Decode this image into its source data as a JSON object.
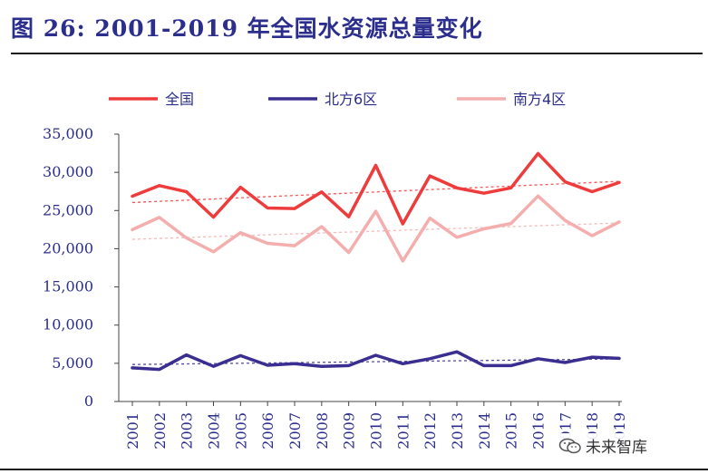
{
  "header": {
    "title": "图 26: 2001-2019 年全国水资源总量变化"
  },
  "watermark": {
    "text": "未来智库",
    "icon": "wechat-icon"
  },
  "chart_data": {
    "type": "line",
    "title": "",
    "xlabel": "",
    "ylabel": "",
    "ylim": [
      0,
      35000
    ],
    "yticks": [
      0,
      5000,
      10000,
      15000,
      20000,
      25000,
      30000,
      35000
    ],
    "ytick_labels": [
      "0",
      "5,000",
      "10,000",
      "15,000",
      "20,000",
      "25,000",
      "30,000",
      "35,000"
    ],
    "categories": [
      "2001",
      "2002",
      "2003",
      "2004",
      "2005",
      "2006",
      "2007",
      "2008",
      "2009",
      "2010",
      "2011",
      "2012",
      "2013",
      "2014",
      "2015",
      "2016",
      "2017",
      "2018",
      "2019"
    ],
    "legend_position": "top",
    "series": [
      {
        "name": "全国",
        "color": "#ee3b3b",
        "values": [
          26868,
          28261,
          27460,
          24130,
          28053,
          25330,
          25255,
          27434,
          24180,
          30906,
          23257,
          29529,
          27958,
          27267,
          27963,
          32466,
          28761,
          27463,
          28670
        ]
      },
      {
        "name": "北方6区",
        "color": "#3a2f90",
        "values": [
          4400,
          4200,
          6100,
          4600,
          6000,
          4750,
          4950,
          4600,
          4700,
          6050,
          4950,
          5600,
          6500,
          4700,
          4700,
          5600,
          5100,
          5800,
          5650
        ]
      },
      {
        "name": "南方4区",
        "color": "#f4aeae",
        "values": [
          22500,
          24100,
          21400,
          19600,
          22100,
          20700,
          20400,
          22900,
          19500,
          24900,
          18400,
          24000,
          21500,
          22600,
          23300,
          26900,
          23700,
          21700,
          23500
        ]
      }
    ],
    "trendlines": [
      {
        "series": "全国",
        "style": "dashed",
        "color": "#ee3b3b"
      },
      {
        "series": "北方6区",
        "style": "dashed",
        "color": "#3a2f90"
      },
      {
        "series": "南方4区",
        "style": "dashed",
        "color": "#f4aeae"
      }
    ]
  }
}
